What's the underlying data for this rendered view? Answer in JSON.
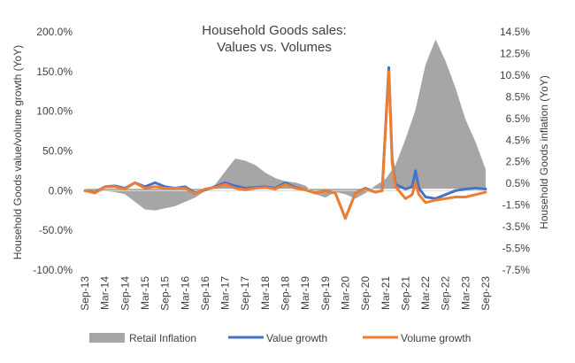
{
  "chart_data": {
    "type": "line",
    "title_lines": [
      "Household Goods sales:",
      "Values vs. Volumes"
    ],
    "ylabel_left": "Household Goods value/volume  growth (YoY)",
    "ylabel_right": "Household Goods inflation (YoY)",
    "left_axis": {
      "min": -100,
      "max": 200,
      "ticks": [
        200,
        150,
        100,
        50,
        0,
        -50,
        -100
      ],
      "tick_labels": [
        "200.0%",
        "150.0%",
        "100.0%",
        "50.0%",
        "0.0%",
        "-50.0%",
        "-100.0%"
      ]
    },
    "right_axis": {
      "min": -7.5,
      "max": 14.5,
      "ticks": [
        14.5,
        12.5,
        10.5,
        8.5,
        6.5,
        4.5,
        2.5,
        0.5,
        -1.5,
        -3.5,
        -5.5,
        -7.5
      ],
      "tick_labels": [
        "14.5%",
        "12.5%",
        "10.5%",
        "8.5%",
        "6.5%",
        "4.5%",
        "2.5%",
        "0.5%",
        "-1.5%",
        "-3.5%",
        "-5.5%",
        "-7.5%"
      ]
    },
    "x_start": "Sep-13",
    "x_end": "Sep-23",
    "x_tick_labels": [
      "Sep-13",
      "Mar-14",
      "Sep-14",
      "Mar-15",
      "Sep-15",
      "Mar-16",
      "Sep-16",
      "Mar-17",
      "Sep-17",
      "Mar-18",
      "Sep-18",
      "Mar-19",
      "Sep-19",
      "Mar-20",
      "Sep-20",
      "Mar-21",
      "Sep-21",
      "Mar-22",
      "Sep-22",
      "Mar-23",
      "Sep-23"
    ],
    "series": [
      {
        "name": "Retail Inflation",
        "kind": "area",
        "axis": "right",
        "color": "#a6a6a6",
        "points": [
          [
            "Sep-13",
            0.0
          ],
          [
            "Dec-13",
            -0.3
          ],
          [
            "Mar-14",
            -0.2
          ],
          [
            "Jun-14",
            -0.3
          ],
          [
            "Sep-14",
            -0.5
          ],
          [
            "Dec-14",
            -1.2
          ],
          [
            "Mar-15",
            -1.9
          ],
          [
            "Jun-15",
            -2.0
          ],
          [
            "Sep-15",
            -1.8
          ],
          [
            "Dec-15",
            -1.6
          ],
          [
            "Mar-16",
            -1.2
          ],
          [
            "Jun-16",
            -0.8
          ],
          [
            "Sep-16",
            -0.2
          ],
          [
            "Dec-16",
            0.4
          ],
          [
            "Mar-17",
            1.6
          ],
          [
            "Jun-17",
            2.8
          ],
          [
            "Sep-17",
            2.6
          ],
          [
            "Dec-17",
            2.2
          ],
          [
            "Mar-18",
            1.5
          ],
          [
            "Jun-18",
            1.0
          ],
          [
            "Sep-18",
            0.7
          ],
          [
            "Dec-18",
            0.6
          ],
          [
            "Mar-19",
            0.3
          ],
          [
            "Jun-19",
            -0.5
          ],
          [
            "Sep-19",
            -0.8
          ],
          [
            "Dec-19",
            -0.3
          ],
          [
            "Mar-20",
            -0.5
          ],
          [
            "Jun-20",
            -0.9
          ],
          [
            "Sep-20",
            -0.4
          ],
          [
            "Dec-20",
            0.3
          ],
          [
            "Mar-21",
            0.9
          ],
          [
            "Jun-21",
            2.2
          ],
          [
            "Sep-21",
            4.6
          ],
          [
            "Dec-21",
            7.3
          ],
          [
            "Mar-22",
            11.5
          ],
          [
            "Jun-22",
            13.8
          ],
          [
            "Sep-22",
            11.8
          ],
          [
            "Dec-22",
            9.3
          ],
          [
            "Mar-23",
            6.4
          ],
          [
            "Jun-23",
            4.3
          ],
          [
            "Sep-23",
            1.8
          ]
        ]
      },
      {
        "name": "Value growth",
        "kind": "line",
        "axis": "left",
        "color": "#4472c4",
        "points": [
          [
            "Sep-13",
            0
          ],
          [
            "Dec-13",
            -2
          ],
          [
            "Mar-14",
            5
          ],
          [
            "Jun-14",
            6
          ],
          [
            "Sep-14",
            3
          ],
          [
            "Dec-14",
            10
          ],
          [
            "Mar-15",
            5
          ],
          [
            "Jun-15",
            10
          ],
          [
            "Sep-15",
            5
          ],
          [
            "Dec-15",
            3
          ],
          [
            "Mar-16",
            5
          ],
          [
            "Jun-16",
            -3
          ],
          [
            "Sep-16",
            1
          ],
          [
            "Dec-16",
            5
          ],
          [
            "Mar-17",
            10
          ],
          [
            "Jun-17",
            6
          ],
          [
            "Sep-17",
            3
          ],
          [
            "Dec-17",
            4
          ],
          [
            "Mar-18",
            5
          ],
          [
            "Jun-18",
            3
          ],
          [
            "Sep-18",
            10
          ],
          [
            "Dec-18",
            4
          ],
          [
            "Mar-19",
            1
          ],
          [
            "Jun-19",
            -3
          ],
          [
            "Sep-19",
            0
          ],
          [
            "Dec-19",
            -3
          ],
          [
            "Mar-20",
            -35
          ],
          [
            "Jun-20",
            -3
          ],
          [
            "Sep-20",
            3
          ],
          [
            "Dec-20",
            -2
          ],
          [
            "Feb-21",
            0
          ],
          [
            "Apr-21",
            155
          ],
          [
            "May-21",
            40
          ],
          [
            "Jun-21",
            8
          ],
          [
            "Sep-21",
            2
          ],
          [
            "Nov-21",
            5
          ],
          [
            "Dec-21",
            25
          ],
          [
            "Jan-22",
            3
          ],
          [
            "Mar-22",
            -8
          ],
          [
            "Jun-22",
            -10
          ],
          [
            "Sep-22",
            -5
          ],
          [
            "Dec-22",
            0
          ],
          [
            "Mar-23",
            2
          ],
          [
            "Jun-23",
            3
          ],
          [
            "Sep-23",
            2
          ]
        ]
      },
      {
        "name": "Volume growth",
        "kind": "line",
        "axis": "left",
        "color": "#ed7d31",
        "points": [
          [
            "Sep-13",
            0
          ],
          [
            "Dec-13",
            -3
          ],
          [
            "Mar-14",
            5
          ],
          [
            "Jun-14",
            5
          ],
          [
            "Sep-14",
            2
          ],
          [
            "Dec-14",
            10
          ],
          [
            "Mar-15",
            3
          ],
          [
            "Jun-15",
            5
          ],
          [
            "Sep-15",
            3
          ],
          [
            "Dec-15",
            3
          ],
          [
            "Mar-16",
            3
          ],
          [
            "Jun-16",
            -4
          ],
          [
            "Sep-16",
            2
          ],
          [
            "Dec-16",
            4
          ],
          [
            "Mar-17",
            8
          ],
          [
            "Jun-17",
            3
          ],
          [
            "Sep-17",
            1
          ],
          [
            "Dec-17",
            3
          ],
          [
            "Mar-18",
            4
          ],
          [
            "Jun-18",
            2
          ],
          [
            "Sep-18",
            8
          ],
          [
            "Dec-18",
            3
          ],
          [
            "Mar-19",
            1
          ],
          [
            "Jun-19",
            -3
          ],
          [
            "Sep-19",
            0
          ],
          [
            "Dec-19",
            -3
          ],
          [
            "Mar-20",
            -35
          ],
          [
            "Jun-20",
            -3
          ],
          [
            "Sep-20",
            2
          ],
          [
            "Dec-20",
            -2
          ],
          [
            "Feb-21",
            0
          ],
          [
            "Apr-21",
            150
          ],
          [
            "May-21",
            35
          ],
          [
            "Jun-21",
            5
          ],
          [
            "Sep-21",
            -10
          ],
          [
            "Nov-21",
            -5
          ],
          [
            "Dec-21",
            10
          ],
          [
            "Jan-22",
            -5
          ],
          [
            "Mar-22",
            -15
          ],
          [
            "Jun-22",
            -12
          ],
          [
            "Sep-22",
            -10
          ],
          [
            "Dec-22",
            -8
          ],
          [
            "Mar-23",
            -8
          ],
          [
            "Jun-23",
            -5
          ],
          [
            "Sep-23",
            -2
          ]
        ]
      }
    ],
    "legend": {
      "placement": "bottom",
      "items": [
        {
          "label": "Retail Inflation",
          "kind": "area",
          "color": "#a6a6a6"
        },
        {
          "label": "Value growth",
          "kind": "line",
          "color": "#4472c4"
        },
        {
          "label": "Volume growth",
          "kind": "line",
          "color": "#ed7d31"
        }
      ]
    }
  }
}
